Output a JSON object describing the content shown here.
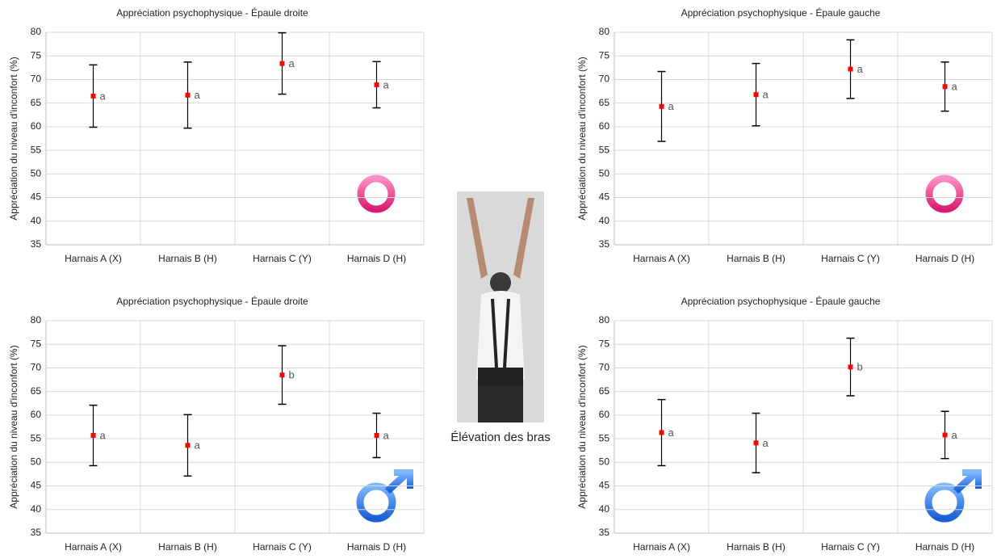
{
  "chart_data": [
    {
      "type": "errorbar",
      "title": "Appréciation psychophysique - Épaule droite",
      "y_label": "Appréciation du niveau d'inconfort (%)",
      "categories": [
        "Harnais A (X)",
        "Harnais B (H)",
        "Harnais C (Y)",
        "Harnais D (H)"
      ],
      "values": [
        66.5,
        66.7,
        73.4,
        68.9
      ],
      "errors": [
        6.6,
        7,
        6.5,
        4.9
      ],
      "annotations": [
        "a",
        "a",
        "a",
        "a"
      ],
      "color": "#ff0000",
      "ylim": [
        35,
        80
      ],
      "yticks": [
        35,
        40,
        45,
        50,
        55,
        60,
        65,
        70,
        75,
        80
      ],
      "grid": true
    },
    {
      "type": "errorbar",
      "title": "Appréciation psychophysique - Épaule gauche",
      "y_label": "Appréciation du niveau d'inconfort (%)",
      "categories": [
        "Harnais A (X)",
        "Harnais B (H)",
        "Harnais C (Y)",
        "Harnais D (H)"
      ],
      "values": [
        64.3,
        66.8,
        72.2,
        68.5
      ],
      "errors": [
        7.4,
        6.6,
        6.2,
        5.2
      ],
      "annotations": [
        "a",
        "a",
        "a",
        "a"
      ],
      "color": "#ff0000",
      "ylim": [
        35,
        80
      ],
      "yticks": [
        35,
        40,
        45,
        50,
        55,
        60,
        65,
        70,
        75,
        80
      ],
      "grid": true
    },
    {
      "type": "errorbar",
      "title": "Appréciation psychophysique - Épaule droite",
      "y_label": "Appréciation du niveau d'inconfort (%)",
      "categories": [
        "Harnais A (X)",
        "Harnais B (H)",
        "Harnais C (Y)",
        "Harnais D (H)"
      ],
      "values": [
        55.7,
        53.6,
        68.5,
        55.7
      ],
      "errors": [
        6.4,
        6.5,
        6.2,
        4.7
      ],
      "annotations": [
        "a",
        "a",
        "b",
        "a"
      ],
      "color": "#ff0000",
      "ylim": [
        35,
        80
      ],
      "yticks": [
        35,
        40,
        45,
        50,
        55,
        60,
        65,
        70,
        75,
        80
      ],
      "grid": true
    },
    {
      "type": "errorbar",
      "title": "Appréciation psychophysique - Épaule gauche",
      "y_label": "Appréciation du niveau d'inconfort (%)",
      "categories": [
        "Harnais A (X)",
        "Harnais B (H)",
        "Harnais C (Y)",
        "Harnais D (H)"
      ],
      "values": [
        56.3,
        54.1,
        70.2,
        55.8
      ],
      "errors": [
        7,
        6.3,
        6.1,
        5
      ],
      "annotations": [
        "a",
        "a",
        "b",
        "a"
      ],
      "color": "#ff0000",
      "ylim": [
        35,
        80
      ],
      "yticks": [
        35,
        40,
        45,
        50,
        55,
        60,
        65,
        70,
        75,
        80
      ],
      "grid": true
    }
  ],
  "figure": {
    "caption": "Élévation des bras"
  }
}
